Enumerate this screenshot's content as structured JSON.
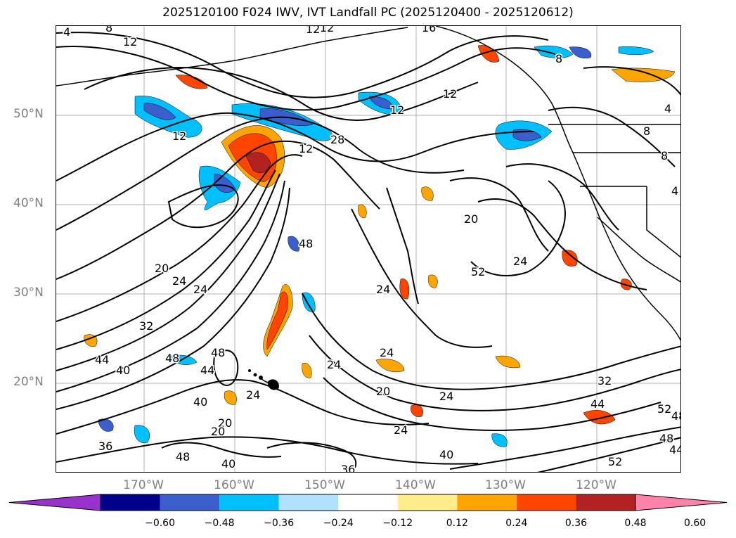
{
  "title": "2025120100 F024 IWV, IVT Landfall PC (2025120400 - 2025120612)",
  "map": {
    "lat_labels": [
      "50°N",
      "40°N",
      "30°N",
      "20°N"
    ],
    "lon_labels": [
      "170°W",
      "160°W",
      "150°W",
      "140°W",
      "130°W",
      "120°W"
    ],
    "contour_labels": [
      "4",
      "8",
      "12",
      "16",
      "12",
      "12",
      "8",
      "12",
      "12",
      "28",
      "12",
      "12",
      "4",
      "8",
      "20",
      "24",
      "24",
      "20",
      "24",
      "24",
      "48",
      "32",
      "40",
      "44",
      "48",
      "48",
      "44",
      "40",
      "24",
      "24",
      "20",
      "24",
      "20",
      "20",
      "24",
      "40",
      "32",
      "36",
      "48",
      "36",
      "40",
      "44",
      "52",
      "48",
      "52",
      "48",
      "44",
      "52",
      "24",
      "4",
      "8"
    ]
  },
  "colorbar": {
    "ticks": [
      "−0.60",
      "−0.48",
      "−0.36",
      "−0.24",
      "−0.12",
      "0.12",
      "0.24",
      "0.36",
      "0.48",
      "0.60"
    ],
    "colors": [
      "#9932cc",
      "#00008b",
      "#3a5fcd",
      "#00bfff",
      "#b0e2ff",
      "#ffffff",
      "#ffec8b",
      "#ffa500",
      "#ff4500",
      "#b22222",
      "#ff82ab"
    ]
  }
}
